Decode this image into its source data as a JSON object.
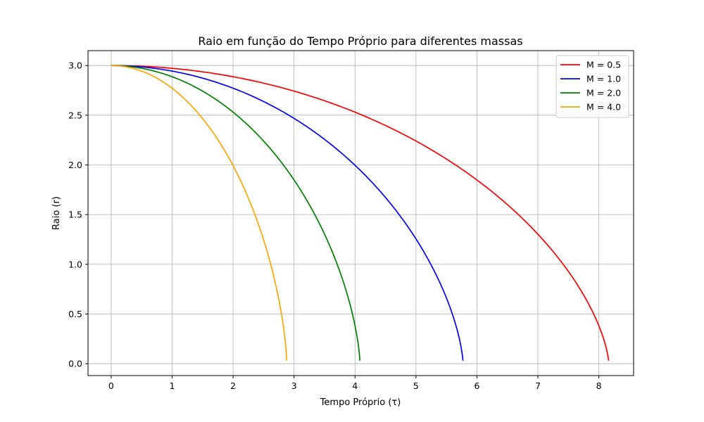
{
  "chart_data": {
    "type": "line",
    "title": "Raio em função do Tempo Próprio para diferentes massas",
    "xlabel": "Tempo Próprio (τ)",
    "ylabel": "Raio (r)",
    "xlim": [
      -0.38,
      8.57
    ],
    "ylim": [
      -0.12,
      3.15
    ],
    "xticks": [
      "0",
      "1",
      "2",
      "3",
      "4",
      "5",
      "6",
      "7",
      "8"
    ],
    "yticks": [
      "0.0",
      "0.5",
      "1.0",
      "1.5",
      "2.0",
      "2.5",
      "3.0"
    ],
    "grid": true,
    "legend_position": "top-right",
    "r0": 3.0,
    "r_end": 0.03,
    "series": [
      {
        "name": "M = 0.5",
        "M": 0.5,
        "color": "#ff0000",
        "tau_end": 8.16
      },
      {
        "name": "M = 1.0",
        "M": 1.0,
        "color": "#0000ff",
        "tau_end": 5.77
      },
      {
        "name": "M = 2.0",
        "M": 2.0,
        "color": "#008000",
        "tau_end": 4.08
      },
      {
        "name": "M = 4.0",
        "M": 4.0,
        "color": "#ffa500",
        "tau_end": 2.88
      }
    ]
  }
}
